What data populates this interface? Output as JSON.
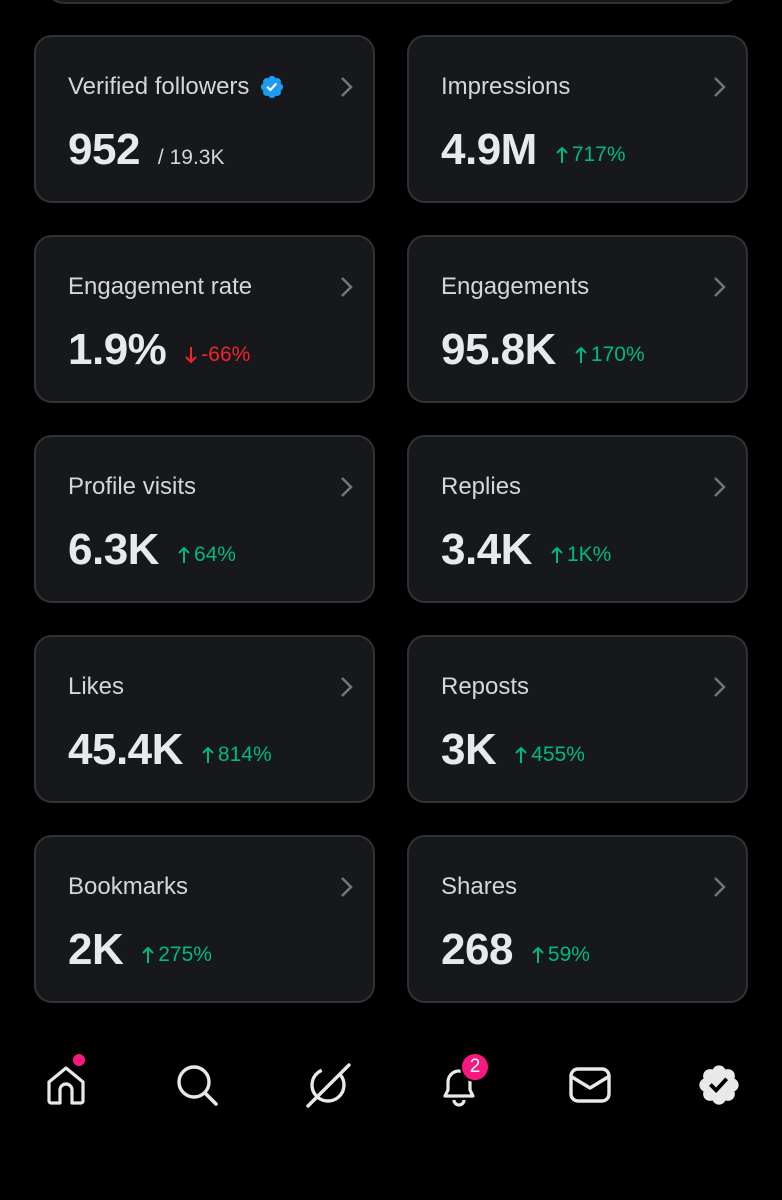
{
  "colors": {
    "up": "#00ba7c",
    "down": "#f4212e",
    "card_bg": "#16181c",
    "verified": "#1d9bf0",
    "badge": "#f91880"
  },
  "stats": [
    {
      "label": "Verified followers",
      "icon": "verified-badge-icon",
      "value": "952",
      "total": "/ 19.3K"
    },
    {
      "label": "Impressions",
      "value": "4.9M",
      "change": "717%",
      "direction": "up"
    },
    {
      "label": "Engagement rate",
      "value": "1.9%",
      "change": "-66%",
      "direction": "down"
    },
    {
      "label": "Engagements",
      "value": "95.8K",
      "change": "170%",
      "direction": "up"
    },
    {
      "label": "Profile visits",
      "value": "6.3K",
      "change": "64%",
      "direction": "up"
    },
    {
      "label": "Replies",
      "value": "3.4K",
      "change": "1K%",
      "direction": "up"
    },
    {
      "label": "Likes",
      "value": "45.4K",
      "change": "814%",
      "direction": "up"
    },
    {
      "label": "Reposts",
      "value": "3K",
      "change": "455%",
      "direction": "up"
    },
    {
      "label": "Bookmarks",
      "value": "2K",
      "change": "275%",
      "direction": "up"
    },
    {
      "label": "Shares",
      "value": "268",
      "change": "59%",
      "direction": "up"
    }
  ],
  "nav": {
    "items": [
      "home-icon",
      "search-icon",
      "grok-icon",
      "notifications-icon",
      "messages-icon",
      "premium-verified-icon"
    ],
    "notifications_badge": "2"
  }
}
